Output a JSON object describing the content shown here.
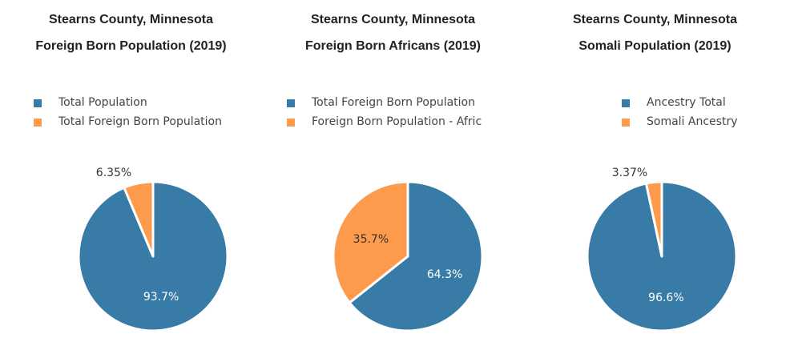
{
  "colors": {
    "series": [
      "#377ba6",
      "#fd9a4b"
    ],
    "inner_label": "#ffffff",
    "outer_label": "#333333"
  },
  "chart_data": [
    {
      "type": "pie",
      "title": "Stearns County, Minnesota",
      "subtitle": "Foreign Born Population (2019)",
      "legend": [
        "Total Population",
        "Total Foreign Born Population"
      ],
      "values": [
        93.7,
        6.35
      ],
      "labels": [
        "93.7%",
        "6.35%"
      ],
      "legend_position": "top"
    },
    {
      "type": "pie",
      "title": "Stearns County, Minnesota",
      "subtitle": "Foreign Born Africans (2019)",
      "legend": [
        "Total Foreign Born Population",
        "Foreign Born Population - Afric"
      ],
      "values": [
        64.3,
        35.7
      ],
      "labels": [
        "64.3%",
        "35.7%"
      ],
      "legend_position": "top"
    },
    {
      "type": "pie",
      "title": "Stearns County, Minnesota",
      "subtitle": "Somali Population (2019)",
      "legend": [
        "Ancestry Total",
        "Somali Ancestry"
      ],
      "values": [
        96.6,
        3.37
      ],
      "labels": [
        "96.6%",
        "3.37%"
      ],
      "legend_position": "top"
    }
  ]
}
